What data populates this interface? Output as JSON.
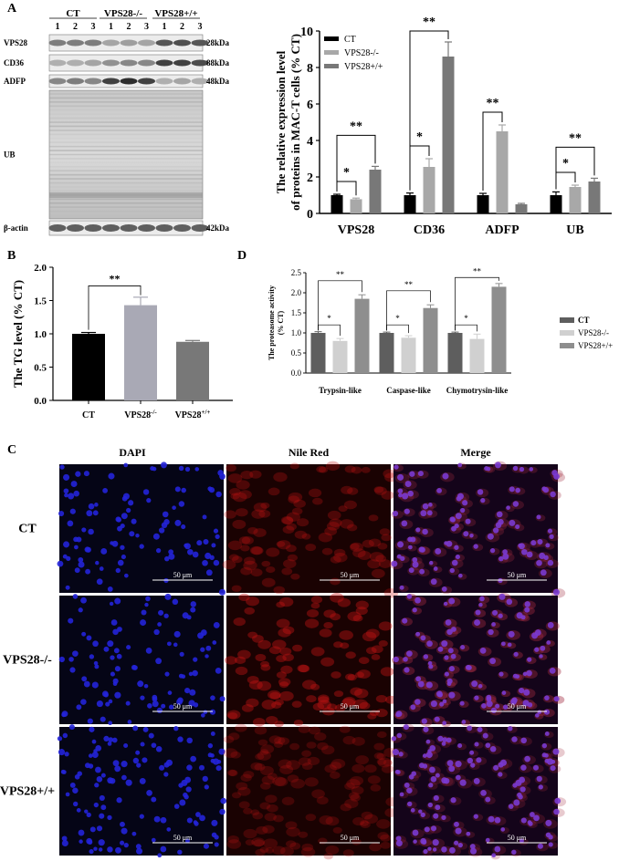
{
  "panels": {
    "A": "A",
    "B": "B",
    "C": "C",
    "D": "D"
  },
  "blot": {
    "groups": [
      "CT",
      "VPS28-/-",
      "VPS28+/+"
    ],
    "lanes": [
      "1",
      "2",
      "3",
      "1",
      "2",
      "3",
      "1",
      "2",
      "3"
    ],
    "rows": [
      {
        "label": "VPS28",
        "size": "28kDa"
      },
      {
        "label": "CD36",
        "size": "88kDa"
      },
      {
        "label": "ADFP",
        "size": "48kDa"
      },
      {
        "label": "UB",
        "size": ""
      },
      {
        "label": "β-actin",
        "size": "42kDa"
      }
    ]
  },
  "colors": {
    "ct": "#000000",
    "ko": "#a8a8a8",
    "oe": "#787878",
    "d_ct": "#5e5e5e",
    "d_ko": "#d0d0d0",
    "d_oe": "#8e8e8e",
    "b_ko": "#a9a9b5"
  },
  "chart_data": [
    {
      "id": "A",
      "type": "bar",
      "categories": [
        "VPS28",
        "CD36",
        "ADFP",
        "UB"
      ],
      "ylabel": "The relative expression level of proteins in MAC-T cells (% CT)",
      "ylabel_lines": [
        "The relative expression level",
        "of proteins in MAC-T cells (% CT)"
      ],
      "ylim": [
        0,
        10
      ],
      "yticks": [
        "0",
        "2",
        "4",
        "6",
        "8",
        "10"
      ],
      "legend": "top-left",
      "series": [
        {
          "name": "CT",
          "values": [
            1.0,
            1.0,
            1.0,
            1.0
          ],
          "errors": [
            0.05,
            0.12,
            0.1,
            0.18
          ]
        },
        {
          "name": "VPS28-/-",
          "values": [
            0.78,
            2.55,
            4.5,
            1.45
          ],
          "errors": [
            0.06,
            0.45,
            0.35,
            0.1
          ]
        },
        {
          "name": "VPS28+/+",
          "values": [
            2.4,
            8.6,
            0.5,
            1.75
          ],
          "errors": [
            0.18,
            0.8,
            0.05,
            0.18
          ]
        }
      ],
      "annotations": [
        {
          "cat": 0,
          "pair": [
            0,
            1
          ],
          "text": "*"
        },
        {
          "cat": 0,
          "pair": [
            0,
            2
          ],
          "text": "**"
        },
        {
          "cat": 1,
          "pair": [
            0,
            1
          ],
          "text": "*"
        },
        {
          "cat": 1,
          "pair": [
            0,
            2
          ],
          "text": "**"
        },
        {
          "cat": 2,
          "pair": [
            0,
            1
          ],
          "text": "**"
        },
        {
          "cat": 3,
          "pair": [
            0,
            1
          ],
          "text": "*"
        },
        {
          "cat": 3,
          "pair": [
            0,
            2
          ],
          "text": "**"
        }
      ]
    },
    {
      "id": "B",
      "type": "bar",
      "categories": [
        "CT",
        "VPS28-/-",
        "VPS28+/+"
      ],
      "category_labels": [
        {
          "base": "CT",
          "sup": ""
        },
        {
          "base": "VPS28",
          "sup": "-/-"
        },
        {
          "base": "VPS28",
          "sup": "+/+"
        }
      ],
      "ylabel": "The TG level (% CT)",
      "ylim": [
        0,
        2.0
      ],
      "yticks": [
        "0.0",
        "0.5",
        "1.0",
        "1.5",
        "2.0"
      ],
      "values": [
        1.0,
        1.43,
        0.88
      ],
      "errors": [
        0.02,
        0.12,
        0.02
      ],
      "annotations": [
        {
          "pair": [
            0,
            1
          ],
          "text": "**"
        }
      ]
    },
    {
      "id": "D",
      "type": "bar",
      "categories": [
        "Trypsin-like",
        "Caspase-like",
        "Chymotrysin-like"
      ],
      "ylabel": "The proteasome activity (% CT)",
      "ylabel_lines": [
        "The proteasome activity",
        "(% CT)"
      ],
      "ylim": [
        0,
        2.5
      ],
      "yticks": [
        "0.0",
        "0.5",
        "1.0",
        "1.5",
        "2.0",
        "2.5"
      ],
      "legend": "right",
      "series": [
        {
          "name": "CT",
          "values": [
            1.0,
            1.0,
            1.0
          ],
          "errors": [
            0.03,
            0.02,
            0.02
          ]
        },
        {
          "name": "VPS28-/-",
          "values": [
            0.8,
            0.88,
            0.85
          ],
          "errors": [
            0.06,
            0.05,
            0.12
          ]
        },
        {
          "name": "VPS28+/+",
          "values": [
            1.85,
            1.62,
            2.15
          ],
          "errors": [
            0.1,
            0.08,
            0.08
          ]
        }
      ],
      "annotations": [
        {
          "cat": 0,
          "pair": [
            0,
            1
          ],
          "text": "*"
        },
        {
          "cat": 0,
          "pair": [
            0,
            2
          ],
          "text": "**"
        },
        {
          "cat": 1,
          "pair": [
            0,
            1
          ],
          "text": "*"
        },
        {
          "cat": 1,
          "pair": [
            0,
            2
          ],
          "text": "**"
        },
        {
          "cat": 2,
          "pair": [
            0,
            1
          ],
          "text": "*"
        },
        {
          "cat": 2,
          "pair": [
            0,
            2
          ],
          "text": "**"
        }
      ]
    }
  ],
  "microscopy": {
    "columns": [
      "DAPI",
      "Nile Red",
      "Merge"
    ],
    "rows": [
      "CT",
      "VPS28-/-",
      "VPS28+/+"
    ],
    "scale_bar": "50 μm"
  }
}
